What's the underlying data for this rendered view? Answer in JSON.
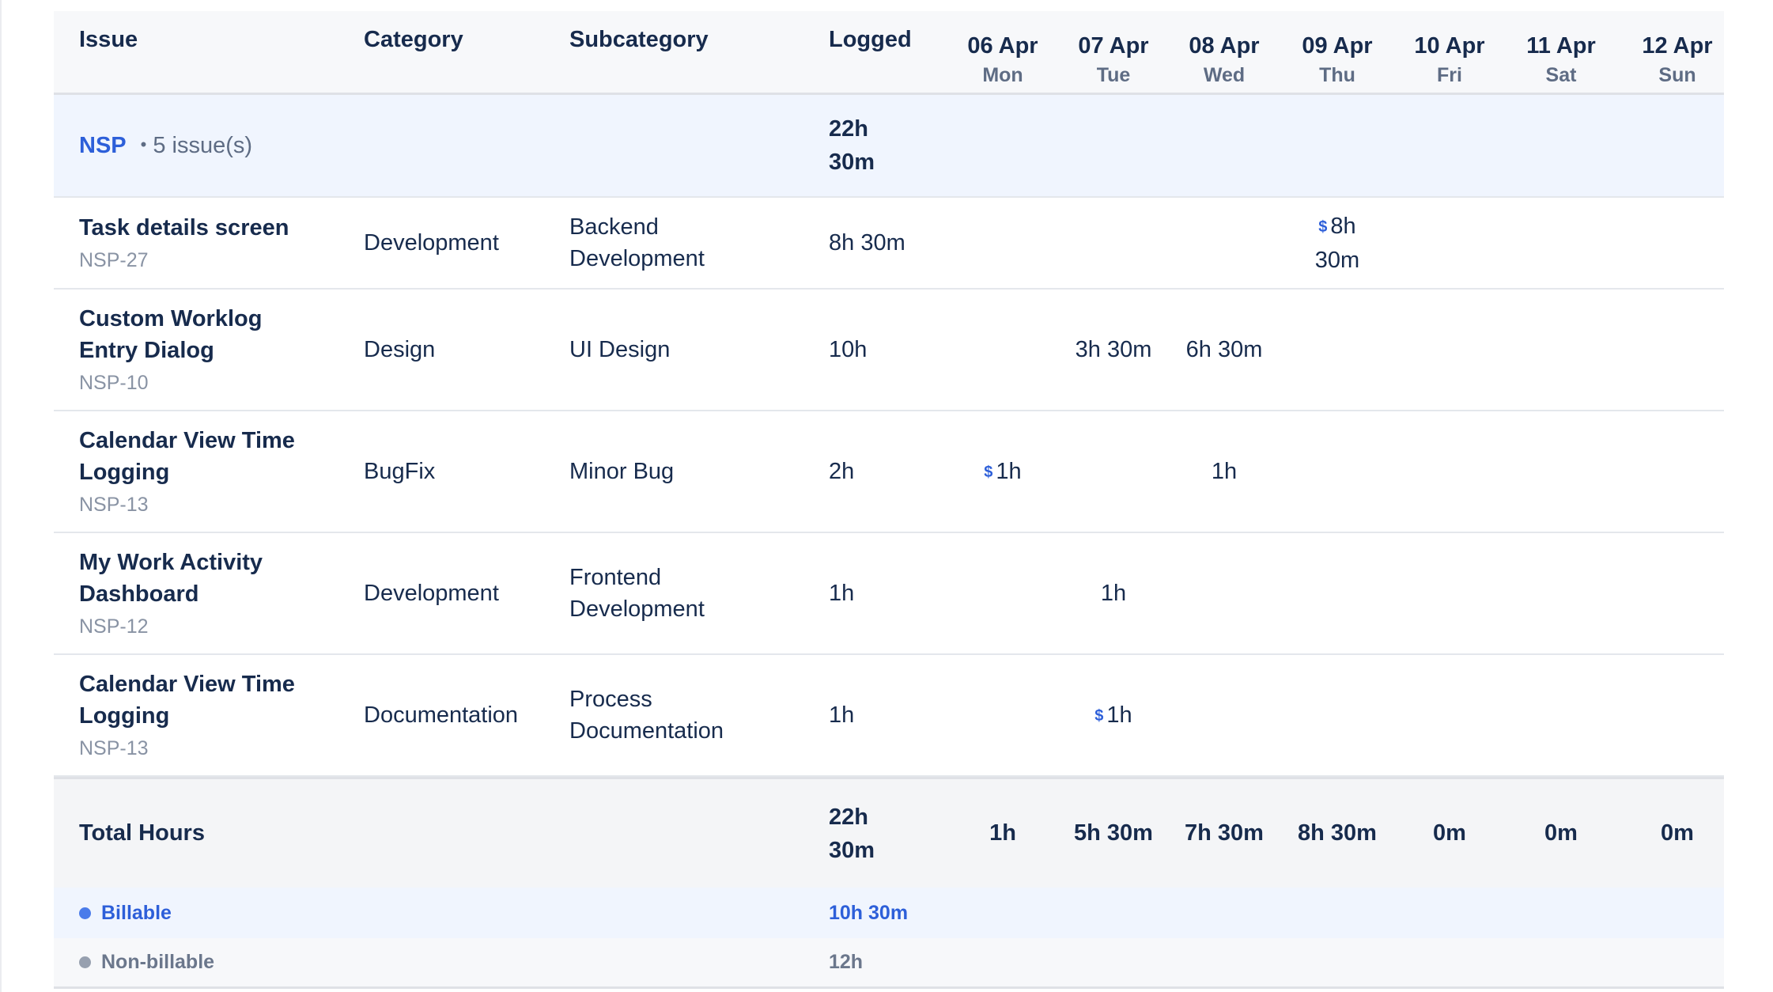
{
  "header": {
    "issue": "Issue",
    "category": "Category",
    "subcategory": "Subcategory",
    "logged": "Logged",
    "days": [
      {
        "date": "06 Apr",
        "dow": "Mon"
      },
      {
        "date": "07 Apr",
        "dow": "Tue"
      },
      {
        "date": "08 Apr",
        "dow": "Wed"
      },
      {
        "date": "09 Apr",
        "dow": "Thu"
      },
      {
        "date": "10 Apr",
        "dow": "Fri"
      },
      {
        "date": "11 Apr",
        "dow": "Sat"
      },
      {
        "date": "12 Apr",
        "dow": "Sun"
      }
    ]
  },
  "group": {
    "key": "NSP",
    "count": "5 issue(s)",
    "logged": "22h 30m"
  },
  "rows": [
    {
      "title": "Task details screen",
      "key": "NSP-27",
      "category": "Development",
      "subcategory": "Backend Development",
      "logged": "8h 30m",
      "days": [
        "",
        "",
        "",
        "8h 30m",
        "",
        "",
        ""
      ],
      "billable": [
        false,
        false,
        false,
        true,
        false,
        false,
        false
      ]
    },
    {
      "title": "Custom Worklog Entry Dialog",
      "key": "NSP-10",
      "category": "Design",
      "subcategory": "UI Design",
      "logged": "10h",
      "days": [
        "",
        "3h 30m",
        "6h 30m",
        "",
        "",
        "",
        ""
      ],
      "billable": [
        false,
        false,
        false,
        false,
        false,
        false,
        false
      ]
    },
    {
      "title": "Calendar View Time Logging",
      "key": "NSP-13",
      "category": "BugFix",
      "subcategory": "Minor Bug",
      "logged": "2h",
      "days": [
        "1h",
        "",
        "1h",
        "",
        "",
        "",
        ""
      ],
      "billable": [
        true,
        false,
        false,
        false,
        false,
        false,
        false
      ]
    },
    {
      "title": "My Work Activity Dashboard",
      "key": "NSP-12",
      "category": "Development",
      "subcategory": "Frontend Development",
      "logged": "1h",
      "days": [
        "",
        "1h",
        "",
        "",
        "",
        "",
        ""
      ],
      "billable": [
        false,
        false,
        false,
        false,
        false,
        false,
        false
      ]
    },
    {
      "title": "Calendar View Time Logging",
      "key": "NSP-13",
      "category": "Documentation",
      "subcategory": "Process Documentation",
      "logged": "1h",
      "days": [
        "",
        "1h",
        "",
        "",
        "",
        "",
        ""
      ],
      "billable": [
        false,
        true,
        false,
        false,
        false,
        false,
        false
      ]
    }
  ],
  "totals": {
    "label": "Total Hours",
    "logged": "22h 30m",
    "days": [
      "1h",
      "5h 30m",
      "7h 30m",
      "8h 30m",
      "0m",
      "0m",
      "0m"
    ]
  },
  "billable": {
    "label": "Billable",
    "value": "10h 30m",
    "color": "#4a7bea"
  },
  "nonbillable": {
    "label": "Non-billable",
    "value": "12h",
    "color": "#97a0af"
  },
  "billable_marker": "$"
}
